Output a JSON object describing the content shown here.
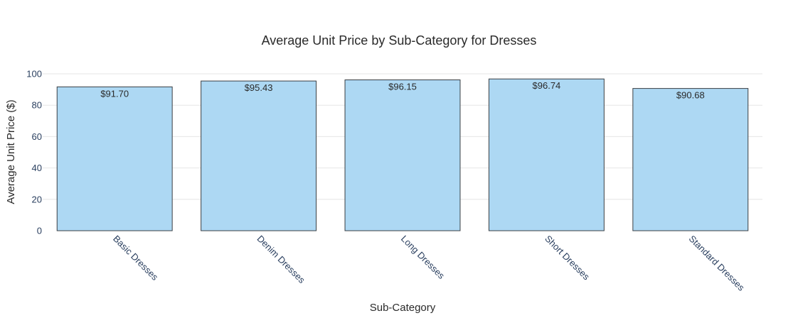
{
  "chart_data": {
    "type": "bar",
    "title": "Average Unit Price by Sub-Category for Dresses",
    "xlabel": "Sub-Category",
    "ylabel": "Average Unit Price ($)",
    "categories": [
      "Basic Dresses",
      "Denim Dresses",
      "Long Dresses",
      "Short Dresses",
      "Standard Dresses"
    ],
    "values": [
      91.7,
      95.43,
      96.15,
      96.74,
      90.68
    ],
    "data_labels": [
      "$91.70",
      "$95.43",
      "$96.15",
      "$96.74",
      "$90.68"
    ],
    "ylim": [
      0,
      100
    ],
    "yticks": [
      0,
      20,
      40,
      60,
      80,
      100
    ],
    "grid": true,
    "legend": "none",
    "colors": {
      "bar_fill": "#add8f3",
      "bar_edge": "#3a3f44",
      "grid": "#e6e6e6",
      "tick_text": "#2a3f5f"
    }
  }
}
